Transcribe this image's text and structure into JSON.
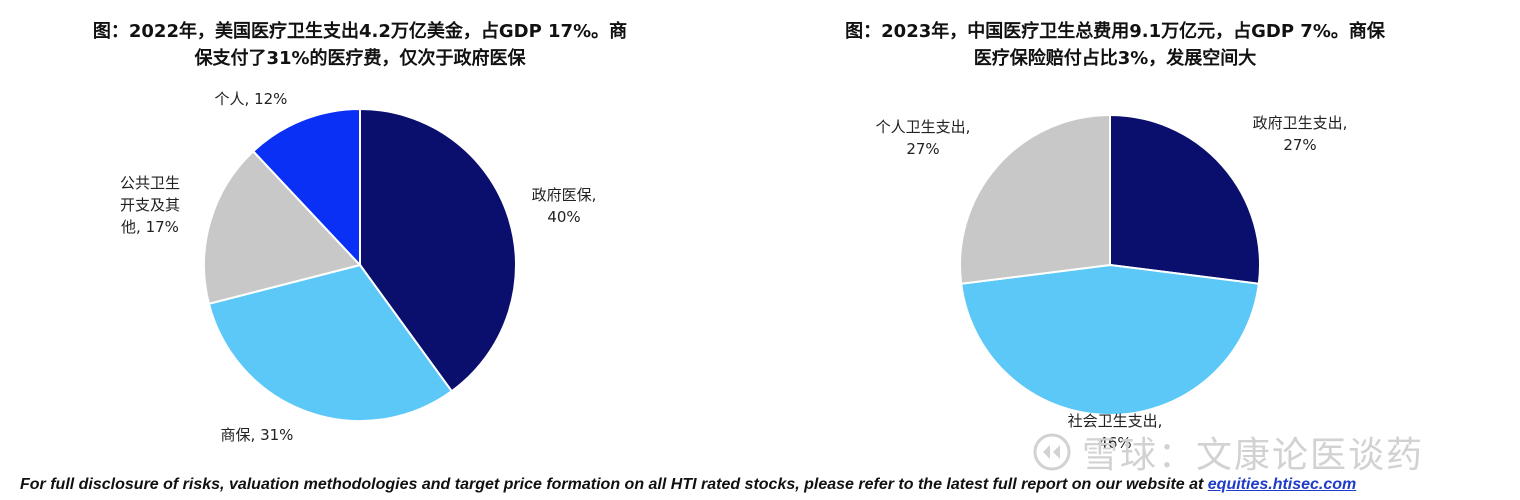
{
  "chart_data": [
    {
      "type": "pie",
      "title": "图：2022年，美国医疗卫生支出4.2万亿美金，占GDP 17%。商\n保支付了31%的医疗费，仅次于政府医保",
      "slices": [
        {
          "name": "政府医保",
          "value": 40,
          "label": "政府医保,\n40%",
          "color": "#0a0f6e"
        },
        {
          "name": "商保",
          "value": 31,
          "label": "商保, 31%",
          "color": "#5bc8f7"
        },
        {
          "name": "公共卫生开支及其他",
          "value": 17,
          "label": "公共卫生\n开支及其\n他, 17%",
          "color": "#c8c8c8"
        },
        {
          "name": "个人",
          "value": 12,
          "label": "个人, 12%",
          "color": "#0a2ff5"
        }
      ]
    },
    {
      "type": "pie",
      "title": "图：2023年，中国医疗卫生总费用9.1万亿元，占GDP 7%。商保\n医疗保险赔付占比3%，发展空间大",
      "slices": [
        {
          "name": "政府卫生支出",
          "value": 27,
          "label": "政府卫生支出,\n27%",
          "color": "#0a0f6e"
        },
        {
          "name": "社会卫生支出",
          "value": 46,
          "label": "社会卫生支出,\n46%",
          "color": "#5bc8f7"
        },
        {
          "name": "个人卫生支出",
          "value": 27,
          "label": "个人卫生支出,\n27%",
          "color": "#c8c8c8"
        }
      ]
    }
  ],
  "watermark": "雪球：文康论医谈药",
  "footer": {
    "text": "For full disclosure of risks, valuation methodologies and target price formation on all HTI rated stocks, please refer to the latest full report on our website at ",
    "link": "equities.htisec.com"
  }
}
